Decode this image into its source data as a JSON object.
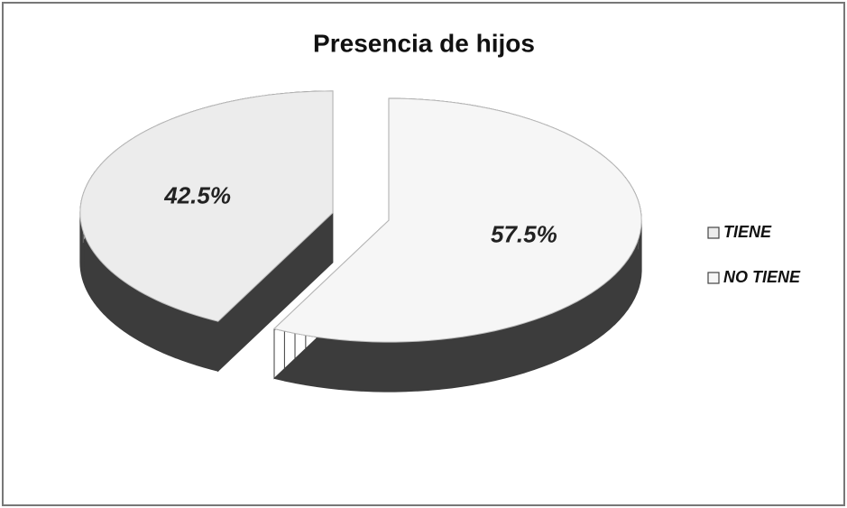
{
  "chart_data": {
    "type": "pie",
    "title": "Presencia de hijos",
    "categories": [
      "TIENE",
      "NO TIENE"
    ],
    "values": [
      42.5,
      57.5
    ],
    "value_labels": [
      "42.5%",
      "57.5%"
    ],
    "colors": [
      "#ececec",
      "#f6f6f6"
    ],
    "legend": "right"
  }
}
